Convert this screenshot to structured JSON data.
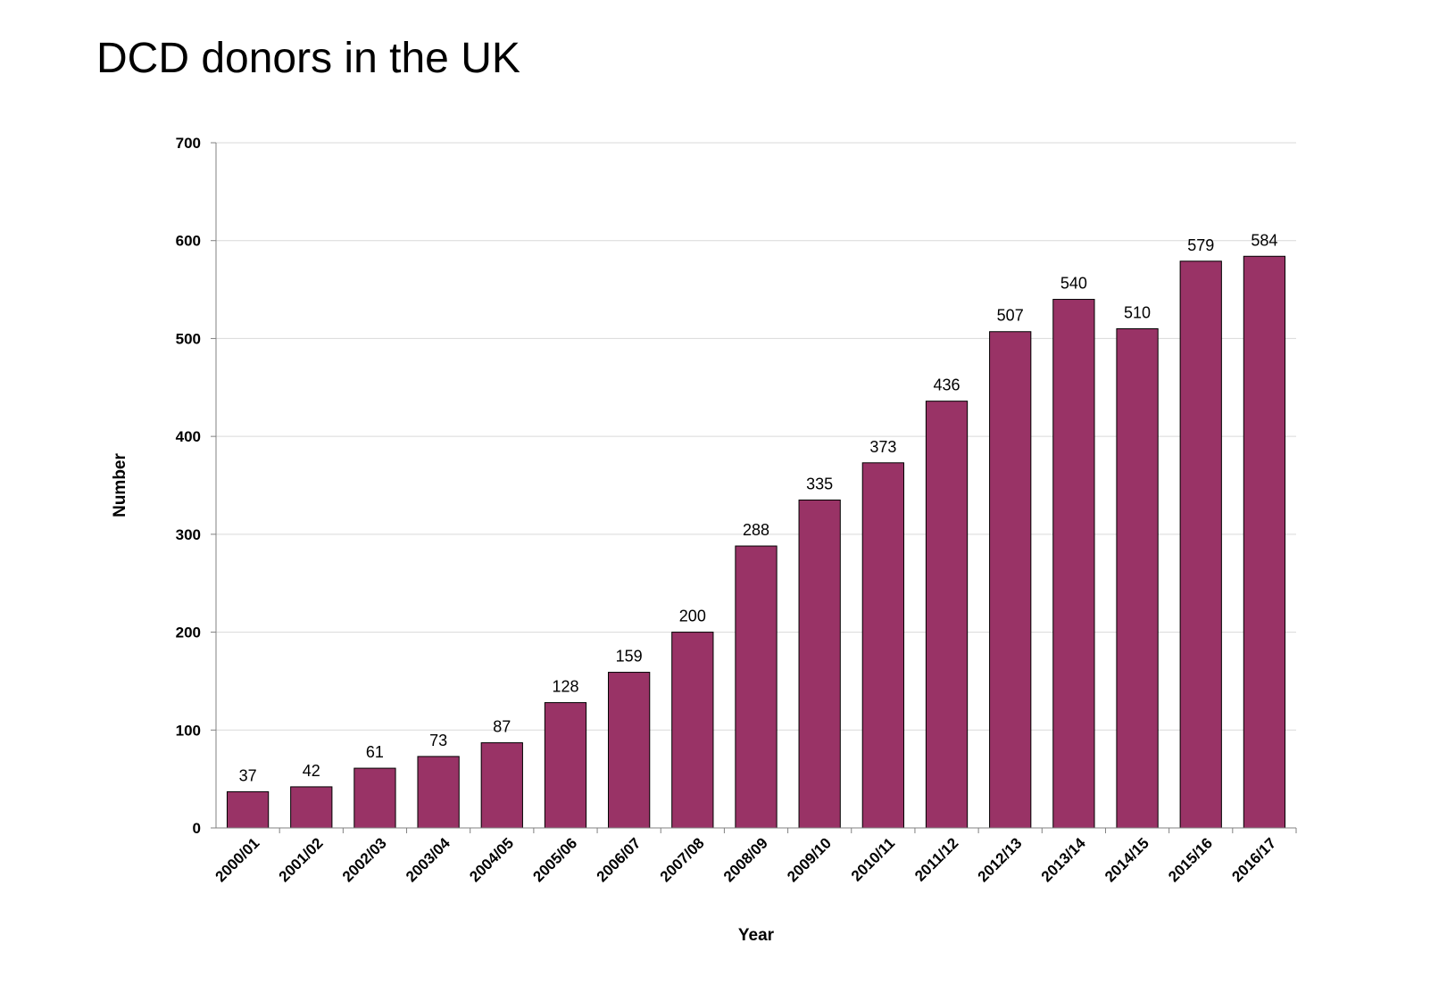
{
  "title": "DCD donors in the UK",
  "chart_data": {
    "type": "bar",
    "categories": [
      "2000/01",
      "2001/02",
      "2002/03",
      "2003/04",
      "2004/05",
      "2005/06",
      "2006/07",
      "2007/08",
      "2008/09",
      "2009/10",
      "2010/11",
      "2011/12",
      "2012/13",
      "2013/14",
      "2014/15",
      "2015/16",
      "2016/17"
    ],
    "values": [
      37,
      42,
      61,
      73,
      87,
      128,
      159,
      200,
      288,
      335,
      373,
      436,
      507,
      540,
      510,
      579,
      584
    ],
    "title": "DCD donors in the UK",
    "xlabel": "Year",
    "ylabel": "Number",
    "ylim": [
      0,
      700
    ],
    "yticks": [
      0,
      100,
      200,
      300,
      400,
      500,
      600,
      700
    ],
    "grid": true,
    "legend": "none",
    "data_labels": true,
    "bar_color": "#993366",
    "bar_edge_color": "#000000",
    "grid_color": "#d9d9d9"
  }
}
